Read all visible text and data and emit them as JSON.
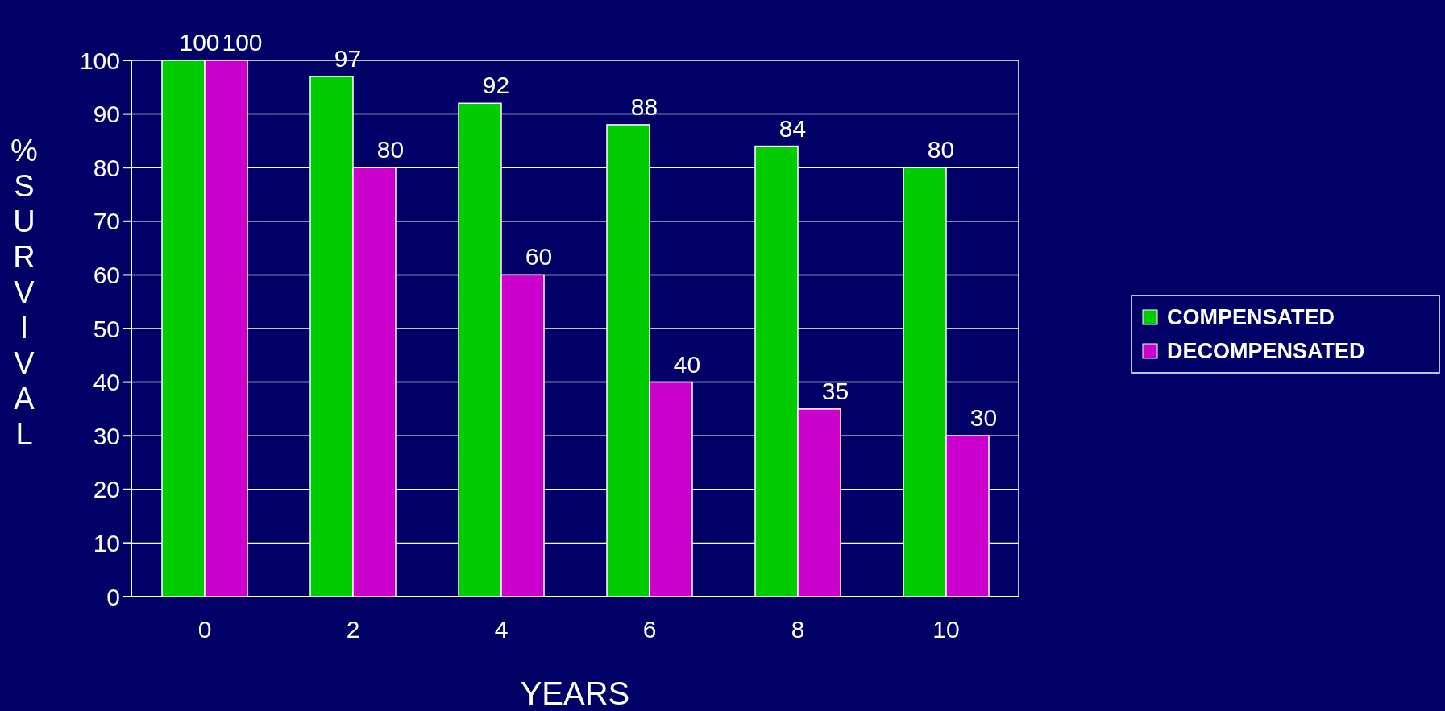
{
  "chart_data": {
    "type": "bar",
    "categories": [
      "0",
      "2",
      "4",
      "6",
      "8",
      "10"
    ],
    "series": [
      {
        "name": "COMPENSATED",
        "color": "#00cc00",
        "values": [
          100,
          97,
          92,
          88,
          84,
          80
        ]
      },
      {
        "name": "DECOMPENSATED",
        "color": "#cc00cc",
        "values": [
          100,
          80,
          60,
          40,
          35,
          30
        ]
      }
    ],
    "ylim": [
      0,
      100
    ],
    "yticks": [
      0,
      10,
      20,
      30,
      40,
      50,
      60,
      70,
      80,
      90,
      100
    ],
    "grid": "y",
    "legend": "right",
    "data_labels": true,
    "xlabel": "YEARS",
    "ylabel": "% SURVIVAL"
  }
}
